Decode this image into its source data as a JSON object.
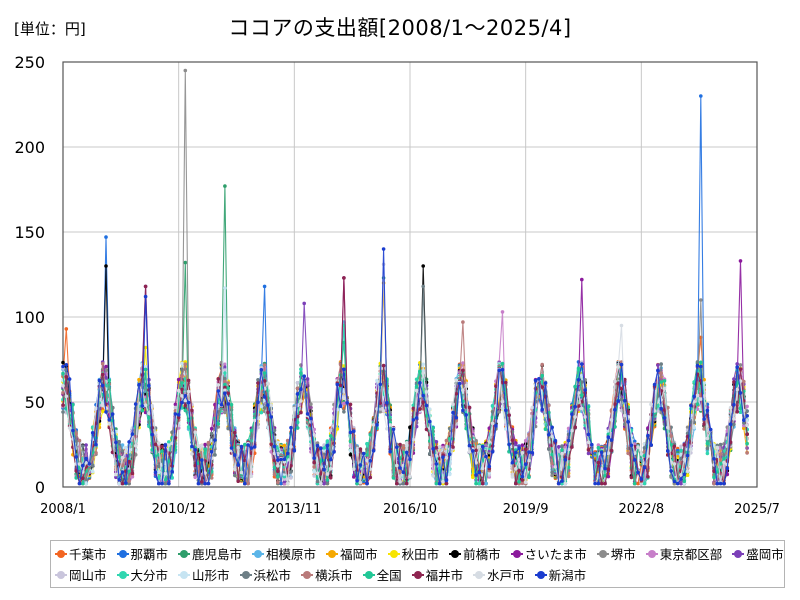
{
  "unit_label": "[単位：円]",
  "chart_data": {
    "type": "line",
    "title": "ココアの支出額[2008/1～2025/4]",
    "xlabel": "",
    "ylabel": "",
    "ylim": [
      0,
      250
    ],
    "yticks": [
      0,
      50,
      100,
      150,
      200,
      250
    ],
    "xticks": [
      "2008/1",
      "2010/12",
      "2013/11",
      "2016/10",
      "2019/9",
      "2022/8",
      "2025/7"
    ],
    "x_range": [
      "2008/1",
      "2025/7"
    ],
    "grid": true,
    "legend_position": "bottom",
    "seasonality": "winter peaks each year, summer troughs",
    "series": [
      {
        "name": "千葉市",
        "color": "#f26522",
        "peaks": [
          [
            2008,
            93
          ],
          [
            2024,
            88
          ]
        ]
      },
      {
        "name": "那覇市",
        "color": "#1f6fe0",
        "peaks": [
          [
            2009,
            147
          ],
          [
            2013,
            118
          ],
          [
            2024,
            230
          ]
        ]
      },
      {
        "name": "鹿児島市",
        "color": "#2e9e6b",
        "peaks": [
          [
            2011,
            132
          ],
          [
            2012,
            177
          ],
          [
            2016,
            123
          ]
        ]
      },
      {
        "name": "相模原市",
        "color": "#5bb5e8",
        "peaks": [
          [
            2015,
            97
          ]
        ]
      },
      {
        "name": "福岡市",
        "color": "#f5a800",
        "peaks": [
          [
            2016,
            120
          ]
        ]
      },
      {
        "name": "秋田市",
        "color": "#f7e400",
        "peaks": [
          [
            2010,
            82
          ]
        ]
      },
      {
        "name": "前橋市",
        "color": "#000000",
        "peaks": [
          [
            2009,
            130
          ],
          [
            2017,
            130
          ]
        ]
      },
      {
        "name": "さいたま市",
        "color": "#8b1a9c",
        "peaks": [
          [
            2015,
            123
          ],
          [
            2021,
            122
          ],
          [
            2025,
            133
          ]
        ]
      },
      {
        "name": "堺市",
        "color": "#8c8c8c",
        "peaks": [
          [
            2011,
            245
          ],
          [
            2024,
            110
          ]
        ]
      },
      {
        "name": "東京都区部",
        "color": "#c77fc9",
        "peaks": [
          [
            2019,
            103
          ]
        ]
      },
      {
        "name": "盛岡市",
        "color": "#7b3fb8",
        "peaks": [
          [
            2010,
            118
          ],
          [
            2014,
            108
          ]
        ]
      },
      {
        "name": "岡山市",
        "color": "#c9c5dc",
        "peaks": [
          [
            2016,
            131
          ]
        ]
      },
      {
        "name": "大分市",
        "color": "#30d6b0",
        "peaks": [
          [
            2015,
            95
          ]
        ]
      },
      {
        "name": "山形市",
        "color": "#c6e4f2",
        "peaks": [
          [
            2012,
            117
          ]
        ]
      },
      {
        "name": "浜松市",
        "color": "#6d7f86",
        "peaks": [
          [
            2017,
            118
          ]
        ]
      },
      {
        "name": "横浜市",
        "color": "#b97a7a",
        "peaks": [
          [
            2018,
            97
          ]
        ]
      },
      {
        "name": "全国",
        "color": "#21c796",
        "peaks": [
          [
            2015,
            85
          ]
        ]
      },
      {
        "name": "福井市",
        "color": "#8e2450",
        "peaks": [
          [
            2010,
            118
          ],
          [
            2015,
            123
          ]
        ]
      },
      {
        "name": "水戸市",
        "color": "#d6dce3",
        "peaks": [
          [
            2022,
            95
          ]
        ]
      },
      {
        "name": "新潟市",
        "color": "#1a3ccf",
        "peaks": [
          [
            2010,
            112
          ],
          [
            2016,
            140
          ]
        ]
      }
    ]
  }
}
